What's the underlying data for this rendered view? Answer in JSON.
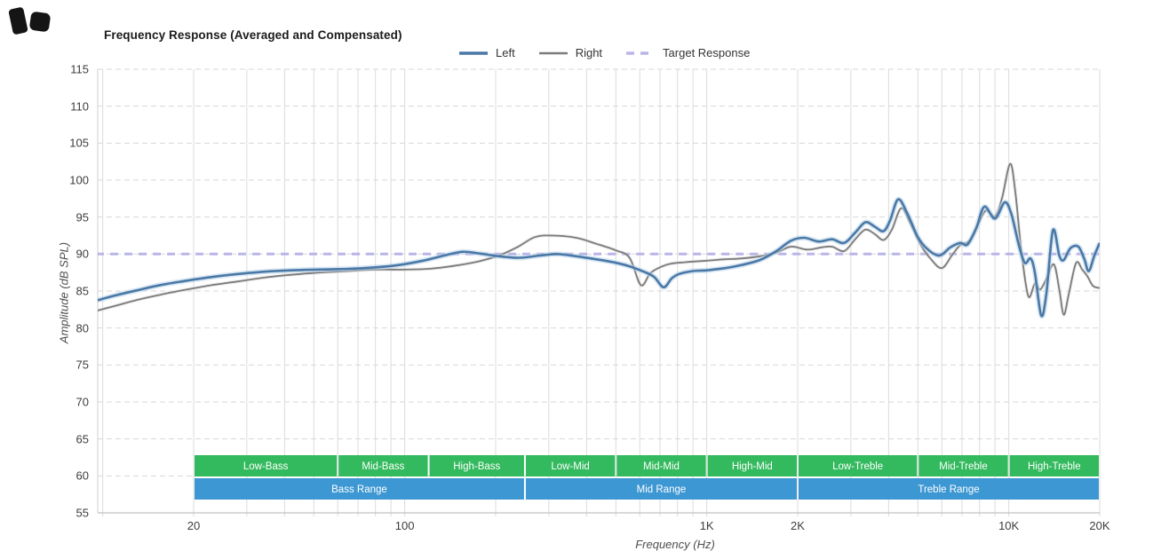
{
  "title": "Frequency Response (Averaged and Compensated)",
  "axes": {
    "x_label": "Frequency (Hz)",
    "y_label": "Amplitude (dB SPL)"
  },
  "legend": {
    "items": [
      {
        "label": "Left",
        "color": "#4a78a6",
        "style": "solid",
        "thickness": 4
      },
      {
        "label": "Right",
        "color": "#7b7b7b",
        "style": "solid",
        "thickness": 2.5
      },
      {
        "label": "Target Response",
        "color": "#bab5e8",
        "style": "dashed",
        "thickness": 4
      }
    ]
  },
  "chart_data": {
    "type": "line",
    "x_scale": "log",
    "x_unit": "Hz",
    "y_unit": "dB SPL",
    "x_range": [
      9.5,
      20000
    ],
    "y_range": [
      55,
      115
    ],
    "grid": true,
    "legend_position": "top-center",
    "x_ticks": [
      {
        "f": 20,
        "label": "20"
      },
      {
        "f": 100,
        "label": "100"
      },
      {
        "f": 1000,
        "label": "1K"
      },
      {
        "f": 2000,
        "label": "2K"
      },
      {
        "f": 10000,
        "label": "10K"
      },
      {
        "f": 20000,
        "label": "20K"
      }
    ],
    "y_ticks": [
      115,
      110,
      105,
      100,
      95,
      90,
      85,
      80,
      75,
      70,
      65,
      60,
      55
    ],
    "target_level_db": 90,
    "series": [
      {
        "name": "Left",
        "color": "#4a78a6",
        "halo_color": "#b8d3ea",
        "width": 2.6,
        "points": [
          [
            9.5,
            83.7
          ],
          [
            11,
            84.4
          ],
          [
            13,
            85.1
          ],
          [
            15.5,
            85.8
          ],
          [
            19,
            86.4
          ],
          [
            23,
            86.9
          ],
          [
            28,
            87.3
          ],
          [
            34,
            87.6
          ],
          [
            42,
            87.8
          ],
          [
            52,
            87.9
          ],
          [
            65,
            88.0
          ],
          [
            80,
            88.2
          ],
          [
            95,
            88.5
          ],
          [
            115,
            89.1
          ],
          [
            135,
            89.8
          ],
          [
            155,
            90.3
          ],
          [
            175,
            90.1
          ],
          [
            205,
            89.7
          ],
          [
            240,
            89.5
          ],
          [
            280,
            89.8
          ],
          [
            320,
            90.0
          ],
          [
            370,
            89.7
          ],
          [
            430,
            89.3
          ],
          [
            490,
            88.9
          ],
          [
            550,
            88.4
          ],
          [
            620,
            87.6
          ],
          [
            670,
            86.9
          ],
          [
            720,
            85.5
          ],
          [
            765,
            86.7
          ],
          [
            810,
            87.3
          ],
          [
            900,
            87.7
          ],
          [
            1000,
            87.8
          ],
          [
            1150,
            88.1
          ],
          [
            1300,
            88.5
          ],
          [
            1500,
            89.2
          ],
          [
            1700,
            90.4
          ],
          [
            1900,
            91.8
          ],
          [
            2100,
            92.2
          ],
          [
            2350,
            91.7
          ],
          [
            2600,
            92.0
          ],
          [
            2850,
            91.5
          ],
          [
            3100,
            92.9
          ],
          [
            3350,
            94.3
          ],
          [
            3600,
            93.7
          ],
          [
            3850,
            93.1
          ],
          [
            4050,
            94.6
          ],
          [
            4300,
            97.4
          ],
          [
            4600,
            95.6
          ],
          [
            5000,
            92.3
          ],
          [
            5400,
            90.6
          ],
          [
            5900,
            89.8
          ],
          [
            6400,
            90.9
          ],
          [
            6900,
            91.5
          ],
          [
            7300,
            91.3
          ],
          [
            7800,
            93.5
          ],
          [
            8300,
            96.4
          ],
          [
            9000,
            94.8
          ],
          [
            9700,
            97.0
          ],
          [
            10200,
            95.4
          ],
          [
            10800,
            91.2
          ],
          [
            11300,
            88.8
          ],
          [
            11800,
            89.4
          ],
          [
            12200,
            87.5
          ],
          [
            12800,
            81.7
          ],
          [
            13300,
            84.5
          ],
          [
            14000,
            93.2
          ],
          [
            14700,
            89.8
          ],
          [
            15200,
            89.2
          ],
          [
            16000,
            90.8
          ],
          [
            17000,
            91.0
          ],
          [
            17800,
            89.3
          ],
          [
            18400,
            87.7
          ],
          [
            19200,
            89.8
          ],
          [
            20000,
            91.5
          ]
        ]
      },
      {
        "name": "Right",
        "color": "#7b7b7b",
        "halo_color": "#dcdcdc",
        "width": 1.8,
        "points": [
          [
            9.5,
            82.3
          ],
          [
            11,
            83.0
          ],
          [
            13,
            83.8
          ],
          [
            15.5,
            84.5
          ],
          [
            19,
            85.2
          ],
          [
            23,
            85.8
          ],
          [
            28,
            86.3
          ],
          [
            34,
            86.8
          ],
          [
            42,
            87.2
          ],
          [
            52,
            87.5
          ],
          [
            65,
            87.7
          ],
          [
            80,
            87.9
          ],
          [
            100,
            87.9
          ],
          [
            120,
            88.0
          ],
          [
            145,
            88.4
          ],
          [
            175,
            89.0
          ],
          [
            205,
            89.8
          ],
          [
            235,
            90.9
          ],
          [
            270,
            92.3
          ],
          [
            310,
            92.5
          ],
          [
            370,
            92.2
          ],
          [
            430,
            91.4
          ],
          [
            500,
            90.5
          ],
          [
            555,
            89.5
          ],
          [
            605,
            85.8
          ],
          [
            650,
            87.4
          ],
          [
            700,
            88.2
          ],
          [
            760,
            88.7
          ],
          [
            850,
            88.9
          ],
          [
            1000,
            89.1
          ],
          [
            1150,
            89.3
          ],
          [
            1300,
            89.4
          ],
          [
            1500,
            89.7
          ],
          [
            1700,
            90.2
          ],
          [
            1900,
            91.0
          ],
          [
            2150,
            90.6
          ],
          [
            2400,
            90.9
          ],
          [
            2600,
            91.0
          ],
          [
            2850,
            90.4
          ],
          [
            3100,
            92.0
          ],
          [
            3350,
            93.3
          ],
          [
            3600,
            92.7
          ],
          [
            3850,
            91.9
          ],
          [
            4100,
            93.3
          ],
          [
            4400,
            96.2
          ],
          [
            4700,
            94.3
          ],
          [
            5100,
            91.3
          ],
          [
            5500,
            89.4
          ],
          [
            6000,
            88.1
          ],
          [
            6500,
            89.9
          ],
          [
            6900,
            91.2
          ],
          [
            7400,
            91.8
          ],
          [
            7900,
            93.9
          ],
          [
            8400,
            95.9
          ],
          [
            9000,
            95.1
          ],
          [
            9500,
            97.6
          ],
          [
            10100,
            102.2
          ],
          [
            10500,
            98.5
          ],
          [
            11000,
            90.5
          ],
          [
            11600,
            84.3
          ],
          [
            12200,
            86.0
          ],
          [
            12700,
            85.2
          ],
          [
            13300,
            86.6
          ],
          [
            14100,
            88.6
          ],
          [
            14700,
            85.2
          ],
          [
            15200,
            81.8
          ],
          [
            15800,
            84.6
          ],
          [
            16700,
            88.8
          ],
          [
            17500,
            87.9
          ],
          [
            18200,
            87.0
          ],
          [
            19000,
            85.7
          ],
          [
            20000,
            85.4
          ]
        ]
      },
      {
        "name": "Target Response",
        "color": "#bab5e8",
        "width": 3,
        "dash": [
          9,
          7
        ],
        "points": [
          [
            9.5,
            90
          ],
          [
            20000,
            90
          ]
        ]
      }
    ],
    "bands": {
      "sub_band_color": "#34ba5e",
      "range_band_color": "#3d97d3",
      "label_color": "#ffffff",
      "sub_bands": [
        {
          "label": "Low-Bass",
          "f1": 20,
          "f2": 60
        },
        {
          "label": "Mid-Bass",
          "f1": 60,
          "f2": 120
        },
        {
          "label": "High-Bass",
          "f1": 120,
          "f2": 250
        },
        {
          "label": "Low-Mid",
          "f1": 250,
          "f2": 500
        },
        {
          "label": "Mid-Mid",
          "f1": 500,
          "f2": 1000
        },
        {
          "label": "High-Mid",
          "f1": 1000,
          "f2": 2000
        },
        {
          "label": "Low-Treble",
          "f1": 2000,
          "f2": 5000
        },
        {
          "label": "Mid-Treble",
          "f1": 5000,
          "f2": 10000
        },
        {
          "label": "High-Treble",
          "f1": 10000,
          "f2": 20000
        }
      ],
      "range_bands": [
        {
          "label": "Bass Range",
          "f1": 20,
          "f2": 250
        },
        {
          "label": "Mid Range",
          "f1": 250,
          "f2": 2000
        },
        {
          "label": "Treble Range",
          "f1": 2000,
          "f2": 20000
        }
      ]
    }
  }
}
